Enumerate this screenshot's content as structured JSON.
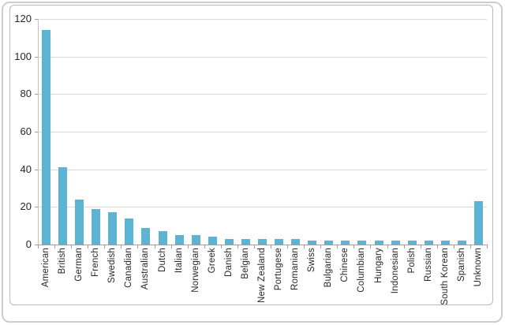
{
  "chart_data": {
    "type": "bar",
    "categories": [
      "American",
      "British",
      "German",
      "French",
      "Swedish",
      "Canadian",
      "Australian",
      "Dutch",
      "Italian",
      "Norwegian",
      "Greek",
      "Danish",
      "Belgian",
      "New Zealand",
      "Portugese",
      "Romanian",
      "Swiss",
      "Bulgarian",
      "Chinese",
      "Columbian",
      "Hungary",
      "Indonesian",
      "Polish",
      "Russian",
      "South Korean",
      "Spanish",
      "Unknown"
    ],
    "values": [
      114,
      41,
      24,
      19,
      17,
      14,
      9,
      7,
      5,
      5,
      4,
      3,
      3,
      3,
      3,
      3,
      2,
      2,
      2,
      2,
      2,
      2,
      2,
      2,
      2,
      2,
      23
    ],
    "title": "",
    "xlabel": "",
    "ylabel": "",
    "ylim": [
      0,
      120
    ],
    "yticks": [
      0,
      20,
      40,
      60,
      80,
      100,
      120
    ],
    "grid": true,
    "legend": false,
    "bar_color": "#5cb3d2"
  },
  "colors": {
    "bar": "#5cb3d2",
    "gridline": "#d9d9d9",
    "x_axis_line": "#9e9e9e",
    "y_axis_line": "#c2c2c2",
    "label_text": "#262626",
    "outer_border": "#cdcdcd",
    "chart_border": "#b9b9b9",
    "background": "#ffffff"
  }
}
